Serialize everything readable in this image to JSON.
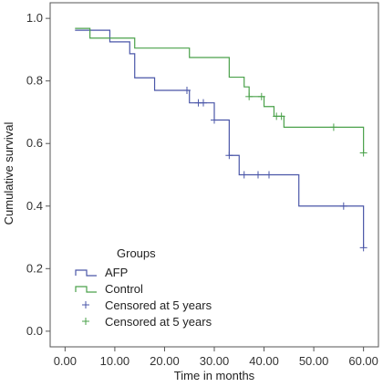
{
  "chart_data": {
    "type": "line",
    "subtype": "kaplan-meier-step",
    "xlabel": "Time in months",
    "ylabel": "Cumulative survival",
    "xlim": [
      -3,
      63
    ],
    "ylim": [
      -0.05,
      1.05
    ],
    "x_ticks": [
      0,
      10,
      20,
      30,
      40,
      50,
      60
    ],
    "x_tick_labels": [
      "0.00",
      "10.00",
      "20.00",
      "30.00",
      "40.00",
      "50.00",
      "60.00"
    ],
    "y_ticks": [
      0.0,
      0.2,
      0.4,
      0.6,
      0.8,
      1.0
    ],
    "y_tick_labels": [
      "0.0",
      "0.2",
      "0.4",
      "0.6",
      "0.8",
      "1.0"
    ],
    "grid": false,
    "legend_title": "Groups",
    "legend_position": "bottom-left",
    "series": [
      {
        "name": "AFP",
        "color": "#4a56a8",
        "steps": [
          [
            2,
            0.962
          ],
          [
            9,
            0.925
          ],
          [
            13,
            0.887
          ],
          [
            14,
            0.81
          ],
          [
            18,
            0.77
          ],
          [
            25,
            0.73
          ],
          [
            30,
            0.675
          ],
          [
            33,
            0.562
          ],
          [
            35,
            0.5
          ],
          [
            47,
            0.4
          ],
          [
            60,
            0.267
          ]
        ],
        "end_x": 60,
        "censored": [
          [
            24.5,
            0.77
          ],
          [
            26.8,
            0.73
          ],
          [
            27.8,
            0.73
          ],
          [
            30,
            0.675
          ],
          [
            33,
            0.562
          ],
          [
            36,
            0.5
          ],
          [
            38.8,
            0.5
          ],
          [
            41,
            0.5
          ],
          [
            56,
            0.4
          ],
          [
            60,
            0.267
          ]
        ]
      },
      {
        "name": "Control",
        "color": "#4aa14a",
        "steps": [
          [
            2,
            0.968
          ],
          [
            5,
            0.937
          ],
          [
            14,
            0.905
          ],
          [
            25,
            0.875
          ],
          [
            33,
            0.812
          ],
          [
            36,
            0.781
          ],
          [
            37,
            0.75
          ],
          [
            40,
            0.718
          ],
          [
            42,
            0.687
          ],
          [
            44,
            0.652
          ],
          [
            60,
            0.57
          ]
        ],
        "end_x": 60,
        "censored": [
          [
            37,
            0.75
          ],
          [
            39.5,
            0.75
          ],
          [
            42.5,
            0.687
          ],
          [
            43.5,
            0.687
          ],
          [
            54,
            0.652
          ],
          [
            60,
            0.57
          ]
        ]
      }
    ],
    "legend_entries": [
      {
        "label": "AFP",
        "kind": "line",
        "color": "#4a56a8"
      },
      {
        "label": "Control",
        "kind": "line",
        "color": "#4aa14a"
      },
      {
        "label": "Censored at 5 years",
        "kind": "censor",
        "color": "#4a56a8"
      },
      {
        "label": "Censored at 5 years",
        "kind": "censor",
        "color": "#4aa14a"
      }
    ]
  }
}
